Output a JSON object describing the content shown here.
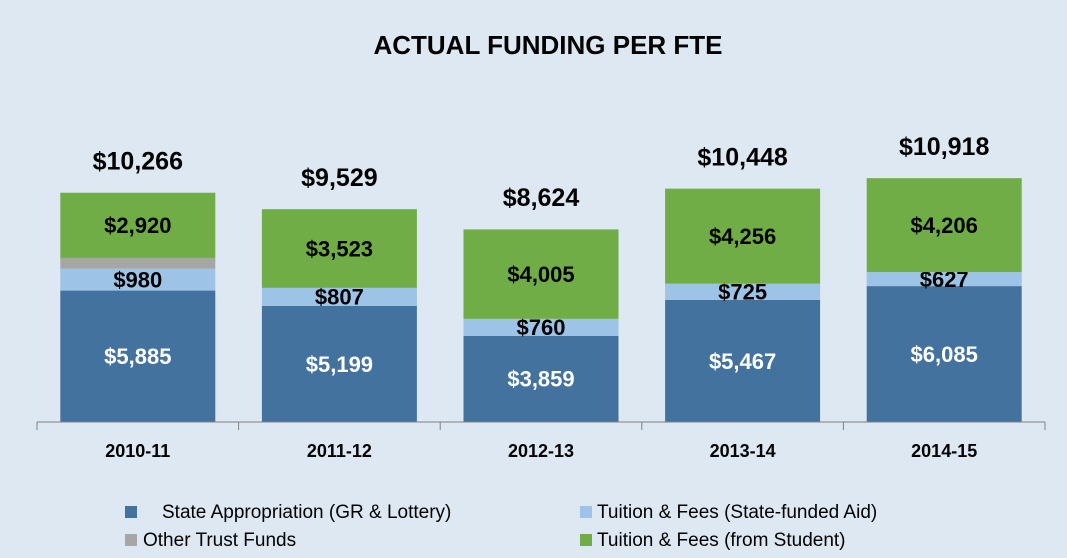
{
  "chart_data": {
    "type": "stacked_bar",
    "title": "ACTUAL FUNDING PER FTE",
    "categories": [
      "2010-11",
      "2011-12",
      "2012-13",
      "2013-14",
      "2014-15"
    ],
    "series": [
      {
        "name": "State Appropriation (GR & Lottery)",
        "color": "#44729f",
        "values": [
          5885,
          5199,
          3859,
          5467,
          6085
        ],
        "value_labels": [
          "$5,885",
          "$5,199",
          "$3,859",
          "$5,467",
          "$6,085"
        ]
      },
      {
        "name": "Tuition & Fees (State-funded Aid)",
        "color": "#9dc3e6",
        "values": [
          980,
          807,
          760,
          725,
          627
        ],
        "value_labels": [
          "$980",
          "$807",
          "$760",
          "$725",
          "$627"
        ]
      },
      {
        "name": "Other Trust Funds",
        "color": "#a6a6a6",
        "values": [
          481,
          0,
          0,
          0,
          0
        ]
      },
      {
        "name": "Tuition & Fees (from Student)",
        "color": "#70ad47",
        "values": [
          2920,
          3523,
          4005,
          4256,
          4206
        ],
        "value_labels": [
          "$2,920",
          "$3,523",
          "$4,005",
          "$4,256",
          "$4,206"
        ]
      }
    ],
    "total_labels": [
      "$10,266",
      "$9,529",
      "$8,624",
      "$10,448",
      "$10,918"
    ],
    "ylim": [
      0,
      12000
    ]
  }
}
